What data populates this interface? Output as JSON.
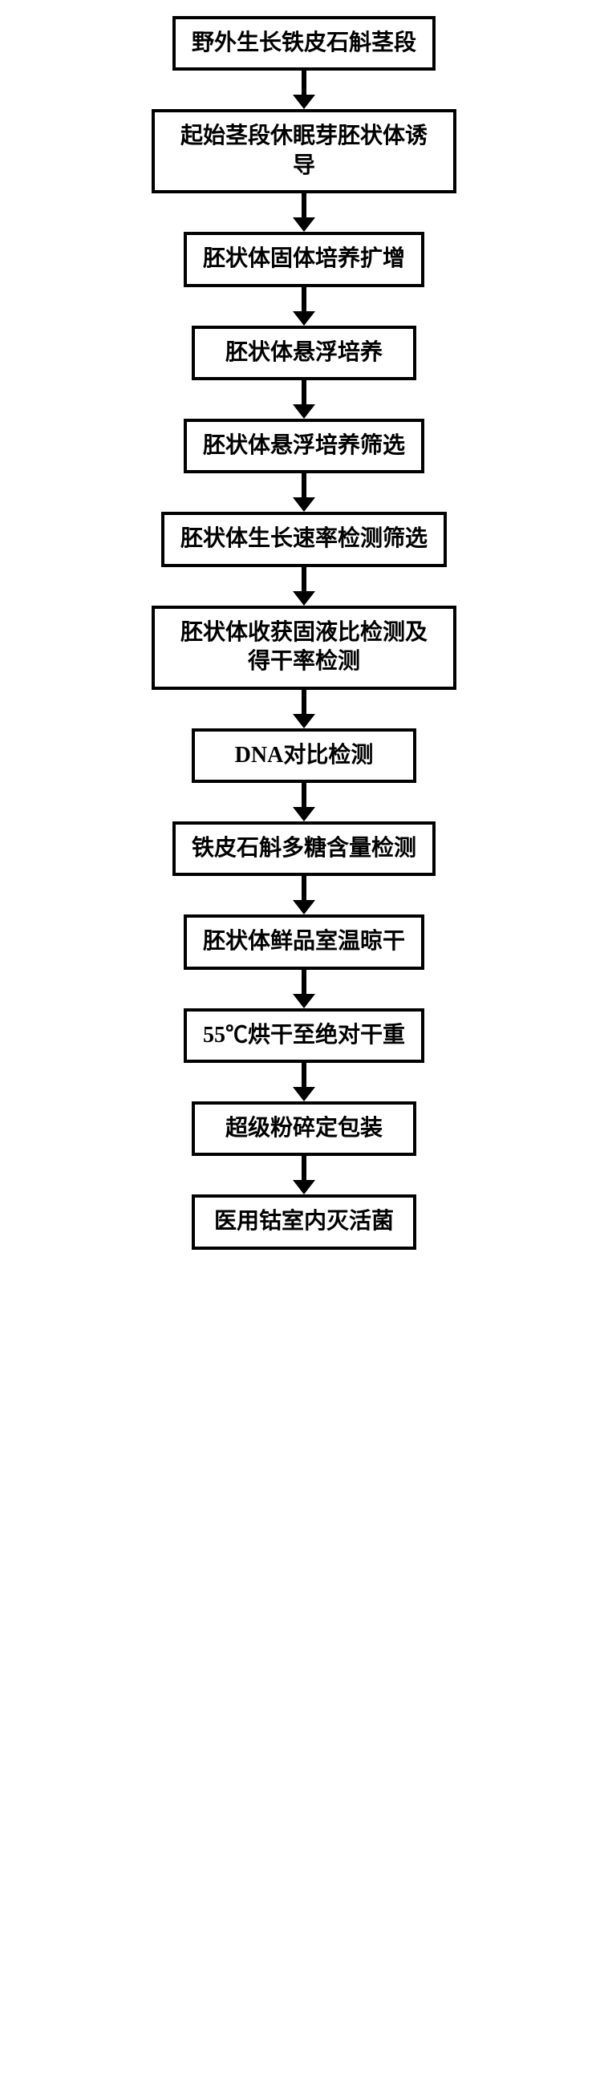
{
  "flowchart": {
    "type": "flowchart",
    "direction": "vertical",
    "node_border_color": "#000000",
    "node_border_width": 4,
    "node_background": "#ffffff",
    "node_text_color": "#000000",
    "node_font_size": 28,
    "node_font_weight": "bold",
    "arrow_color": "#000000",
    "arrow_line_width": 6,
    "arrow_head_width": 28,
    "arrow_head_height": 18,
    "arrow_segment_height": 48,
    "background_color": "#ffffff",
    "steps": [
      {
        "label": "野外生长铁皮石斛茎段"
      },
      {
        "label": "起始茎段休眠芽胚状体诱导"
      },
      {
        "label": "胚状体固体培养扩增"
      },
      {
        "label": "胚状体悬浮培养"
      },
      {
        "label": "胚状体悬浮培养筛选"
      },
      {
        "label": "胚状体生长速率检测筛选"
      },
      {
        "label": "胚状体收获固液比检测及得干率检测"
      },
      {
        "label": "DNA对比检测"
      },
      {
        "label": "铁皮石斛多糖含量检测"
      },
      {
        "label": "胚状体鲜品室温晾干"
      },
      {
        "label": "55℃烘干至绝对干重"
      },
      {
        "label": "超级粉碎定包装"
      },
      {
        "label": "医用钴室内灭活菌"
      }
    ]
  }
}
